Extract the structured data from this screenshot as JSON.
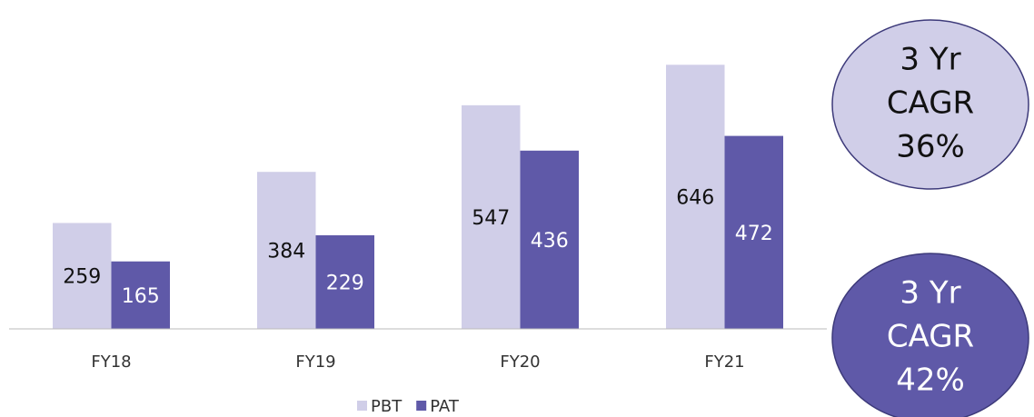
{
  "chart_data": {
    "type": "bar",
    "categories": [
      "FY18",
      "FY19",
      "FY20",
      "FY21"
    ],
    "series": [
      {
        "name": "PBT",
        "color": "#d0cee8",
        "values": [
          259,
          384,
          547,
          646
        ]
      },
      {
        "name": "PAT",
        "color": "#5f59a8",
        "values": [
          165,
          229,
          436,
          472
        ]
      }
    ],
    "legend": "bottom",
    "annotations": [
      {
        "lines": [
          "3 Yr",
          "CAGR",
          "36%"
        ],
        "color": "#d0cee8"
      },
      {
        "lines": [
          "3 Yr",
          "CAGR",
          "42%"
        ],
        "color": "#5f59a8"
      }
    ]
  }
}
